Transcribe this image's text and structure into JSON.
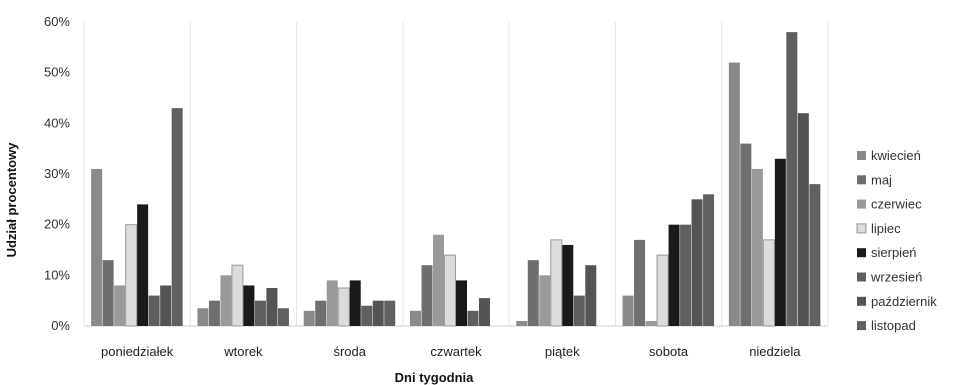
{
  "chart_data": {
    "type": "bar",
    "xlabel": "Dni tygodnia",
    "ylabel": "Udział procentowy",
    "ylim": [
      0,
      60
    ],
    "yticks": [
      "0%",
      "10%",
      "20%",
      "30%",
      "40%",
      "50%",
      "60%"
    ],
    "grid": "vertical",
    "legend": "right",
    "categories": [
      "poniedziałek",
      "wtorek",
      "środa",
      "czwartek",
      "piątek",
      "sobota",
      "niedziela"
    ],
    "series": [
      {
        "name": "kwiecień",
        "color": "#8a8a8a",
        "values": [
          31,
          3.5,
          3,
          3,
          1,
          6,
          52
        ]
      },
      {
        "name": "maj",
        "color": "#6f6f6f",
        "values": [
          13,
          5,
          5,
          12,
          13,
          17,
          36
        ]
      },
      {
        "name": "czerwiec",
        "color": "#9a9a9a",
        "values": [
          8,
          10,
          9,
          18,
          10,
          1,
          31
        ]
      },
      {
        "name": "lipiec",
        "color": "#dcdcdc",
        "values": [
          20,
          12,
          7.5,
          14,
          17,
          14,
          17
        ]
      },
      {
        "name": "sierpień",
        "color": "#1a1a1a",
        "values": [
          24,
          8,
          9,
          9,
          16,
          20,
          33
        ]
      },
      {
        "name": "wrzesień",
        "color": "#5f5f5f",
        "values": [
          6,
          5,
          4,
          3,
          6,
          20,
          58
        ]
      },
      {
        "name": "październik",
        "color": "#545454",
        "values": [
          8,
          7.5,
          5,
          5.5,
          12,
          25,
          42
        ]
      },
      {
        "name": "listopad",
        "color": "#606060",
        "values": [
          43,
          3.5,
          5,
          0,
          0,
          26,
          28
        ]
      }
    ]
  }
}
